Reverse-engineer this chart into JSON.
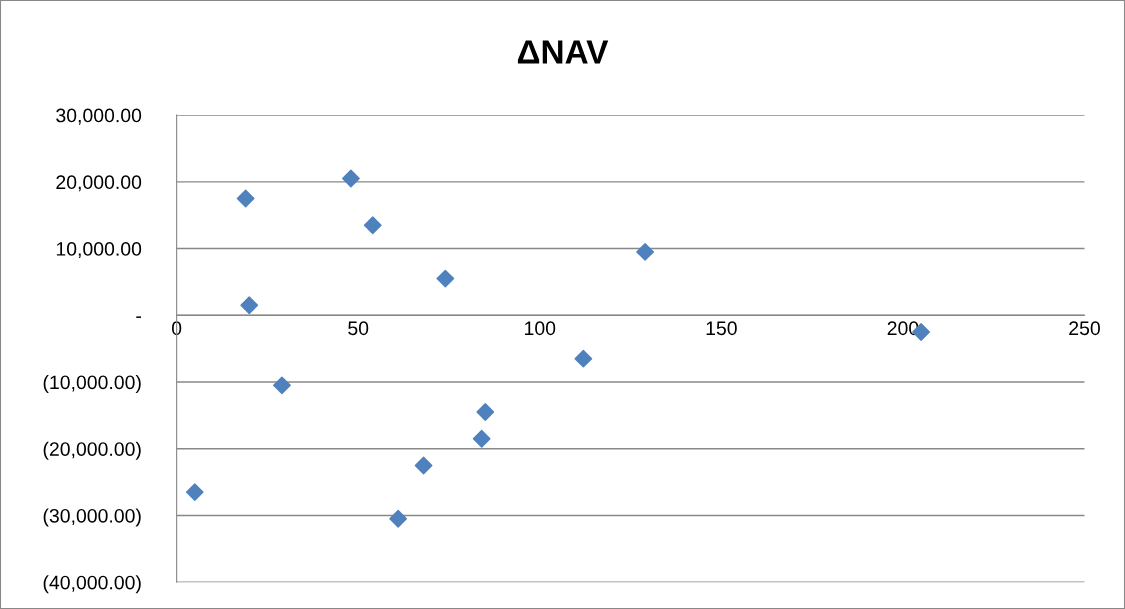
{
  "chart_data": {
    "type": "scatter",
    "title": "ΔNAV",
    "x": [
      5,
      19,
      20,
      29,
      48,
      54,
      61,
      68,
      74,
      84,
      85,
      112,
      129,
      205
    ],
    "values": [
      -26500,
      17500,
      1500,
      -10500,
      20500,
      13500,
      -30500,
      -22500,
      5500,
      -18500,
      -14500,
      -6500,
      9500,
      -2500
    ],
    "color": "#4f81bd",
    "marker": "diamond",
    "xlim": [
      0,
      250
    ],
    "xticks": [
      0,
      50,
      100,
      150,
      200,
      250
    ],
    "ylim": [
      -40000,
      30000
    ],
    "yticks": [
      {
        "value": -40000,
        "label": "(40,000.00)"
      },
      {
        "value": -30000,
        "label": "(30,000.00)"
      },
      {
        "value": -20000,
        "label": "(20,000.00)"
      },
      {
        "value": -10000,
        "label": "(10,000.00)"
      },
      {
        "value": 0,
        "label": "-"
      },
      {
        "value": 10000,
        "label": "10,000.00"
      },
      {
        "value": 20000,
        "label": "20,000.00"
      },
      {
        "value": 30000,
        "label": "30,000.00"
      }
    ],
    "grid": "y"
  }
}
